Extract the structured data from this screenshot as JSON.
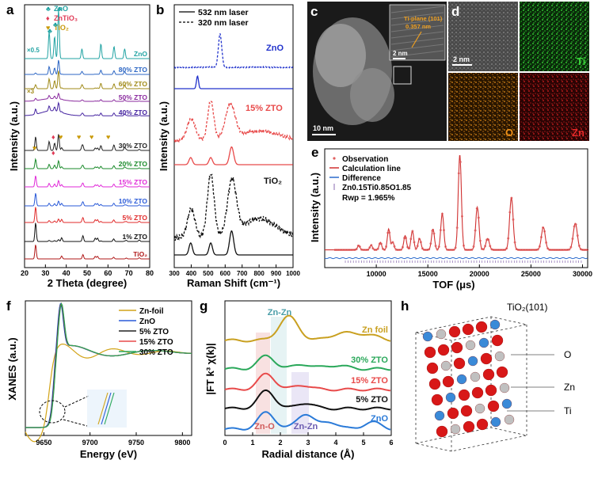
{
  "panels": {
    "a": {
      "label": "a",
      "xlabel": "2 Theta (degree)",
      "ylabel": "Intensity (a.u.)",
      "xticks": [
        "20",
        "30",
        "40",
        "50",
        "60",
        "70",
        "80"
      ],
      "legend": [
        {
          "sym": "♣",
          "text": "ZnO",
          "color": "#21a3a3"
        },
        {
          "sym": "♦",
          "text": "ZnTiO₃",
          "color": "#e03b57"
        },
        {
          "sym": "♥",
          "text": "TiO₂",
          "color": "#c99a0a"
        }
      ],
      "scale_notes": [
        "×0.5",
        "×3"
      ]
    },
    "b": {
      "label": "b",
      "xlabel": "Raman Shift (cm⁻¹)",
      "ylabel": "Intensity (a.u.)",
      "xticks": [
        "300",
        "400",
        "500",
        "600",
        "700",
        "800",
        "900",
        "1000"
      ],
      "legend": [
        "532 nm laser",
        "320 nm laser"
      ],
      "labels": [
        "ZnO",
        "15% ZTO",
        "TiO₂"
      ]
    },
    "c": {
      "label": "c",
      "inset_text_1": "Ti-plane (101)",
      "inset_text_2": "0.357 nm",
      "inset_scale": "2 nm",
      "scale": "10 nm"
    },
    "d": {
      "label": "d",
      "scale": "2 nm",
      "maps": [
        "Ti",
        "O",
        "Zn"
      ]
    },
    "e": {
      "label": "e",
      "xlabel": "TOF (μs)",
      "ylabel": "Intensity (a.u.)",
      "xticks": [
        "10000",
        "15000",
        "20000",
        "25000",
        "30000"
      ],
      "legend": [
        "Observation",
        "Calculation line",
        "Difference"
      ],
      "formula": "Zn0.15Ti0.85O1.85",
      "rwp": "Rwp = 1.965%"
    },
    "f": {
      "label": "f",
      "xlabel": "Energy (eV)",
      "ylabel": "XANES (a.u.)",
      "xticks": [
        "9650",
        "9700",
        "9750",
        "9800"
      ],
      "legend": [
        "Zn-foil",
        "ZnO",
        "5% ZTO",
        "15% ZTO",
        "30% ZTO"
      ]
    },
    "g": {
      "label": "g",
      "xlabel": "Radial distance (Å)",
      "ylabel": "|FT k³ χ(k)|",
      "xticks": [
        "0",
        "1",
        "2",
        "3",
        "4",
        "5",
        "6"
      ],
      "series": [
        "Zn foil",
        "30% ZTO",
        "15% ZTO",
        "5% ZTO",
        "ZnO"
      ],
      "annotations": [
        "Zn-Zn",
        "Zn-O",
        "Zn-Zn"
      ]
    },
    "h": {
      "label": "h",
      "title": "TiO₂(101)",
      "atoms": [
        "O",
        "Zn",
        "Ti"
      ]
    }
  },
  "chart_data": [
    {
      "type": "line",
      "panel": "a",
      "title": "",
      "xlabel": "2 Theta (degree)",
      "ylabel": "Intensity (a.u.)",
      "xlim": [
        20,
        80
      ],
      "series": [
        {
          "name": "ZnO",
          "color": "#21a3a3"
        },
        {
          "name": "80% ZTO",
          "color": "#2c66c4"
        },
        {
          "name": "60% ZTO",
          "color": "#a08a18"
        },
        {
          "name": "50% ZTO",
          "color": "#8a2a9e"
        },
        {
          "name": "40% ZTO",
          "color": "#4422a0"
        },
        {
          "name": "30% ZTO",
          "color": "#222222"
        },
        {
          "name": "20% ZTO",
          "color": "#1a8a2a"
        },
        {
          "name": "15% ZTO",
          "color": "#e02ad8"
        },
        {
          "name": "10% ZTO",
          "color": "#2a5ad8"
        },
        {
          "name": "5% ZTO",
          "color": "#e02a2a"
        },
        {
          "name": "1% ZTO",
          "color": "#111111"
        },
        {
          "name": "TiO₂",
          "color": "#b01818"
        }
      ]
    },
    {
      "type": "line",
      "panel": "b",
      "xlabel": "Raman Shift (cm⁻¹)",
      "ylabel": "Intensity (a.u.)",
      "xlim": [
        300,
        1000
      ],
      "series": [
        {
          "name": "ZnO",
          "color": "#2233cc"
        },
        {
          "name": "15% ZTO",
          "color": "#e84a4a"
        },
        {
          "name": "TiO₂",
          "color": "#111111"
        }
      ]
    },
    {
      "type": "line",
      "panel": "e",
      "xlabel": "TOF (μs)",
      "ylabel": "Intensity (a.u.)",
      "xlim": [
        5000,
        30000
      ],
      "series": [
        {
          "name": "Observation",
          "color": "#e06060"
        },
        {
          "name": "Calculation line",
          "color": "#d03030"
        },
        {
          "name": "Difference",
          "color": "#2a6acc"
        }
      ]
    },
    {
      "type": "line",
      "panel": "f",
      "xlabel": "Energy (eV)",
      "ylabel": "XANES (a.u.)",
      "xlim": [
        9630,
        9810
      ],
      "series": [
        {
          "name": "Zn-foil",
          "color": "#d2a418"
        },
        {
          "name": "ZnO",
          "color": "#2a5ad8"
        },
        {
          "name": "5% ZTO",
          "color": "#222222"
        },
        {
          "name": "15% ZTO",
          "color": "#e84a4a"
        },
        {
          "name": "30% ZTO",
          "color": "#2aa85a"
        }
      ]
    },
    {
      "type": "line",
      "panel": "g",
      "xlabel": "Radial distance (Å)",
      "ylabel": "|FT k³ χ(k)|",
      "xlim": [
        0,
        6
      ],
      "series": [
        {
          "name": "Zn foil",
          "color": "#c9a020"
        },
        {
          "name": "30% ZTO",
          "color": "#2aa85a"
        },
        {
          "name": "15% ZTO",
          "color": "#e84a4a"
        },
        {
          "name": "5% ZTO",
          "color": "#111111"
        },
        {
          "name": "ZnO",
          "color": "#2a7ad8"
        }
      ]
    }
  ]
}
